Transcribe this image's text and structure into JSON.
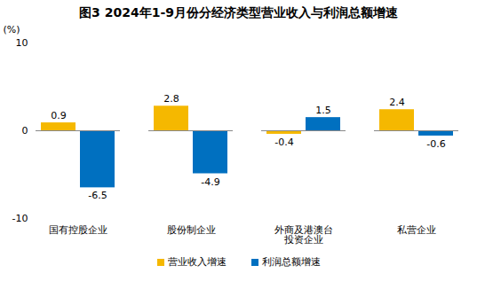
{
  "chart_data": {
    "type": "bar",
    "title": "图3 2024年1-9月份分经济类型营业收入与利润总额增速",
    "ylabel": "(%)",
    "categories": [
      "国有控股企业",
      "股份制企业",
      "外商及港澳台\n投资企业",
      "私营企业"
    ],
    "series": [
      {
        "name": "营业收入增速",
        "color": "#f5b800",
        "values": [
          0.9,
          2.8,
          -0.4,
          2.4
        ]
      },
      {
        "name": "利润总额增速",
        "color": "#0070c0",
        "values": [
          -6.5,
          -4.9,
          1.5,
          -0.6
        ]
      }
    ],
    "ylim": [
      -10,
      10
    ],
    "yticks": [
      -10,
      0,
      10
    ],
    "grid": false,
    "data_labels": true,
    "legend": "bottom"
  }
}
